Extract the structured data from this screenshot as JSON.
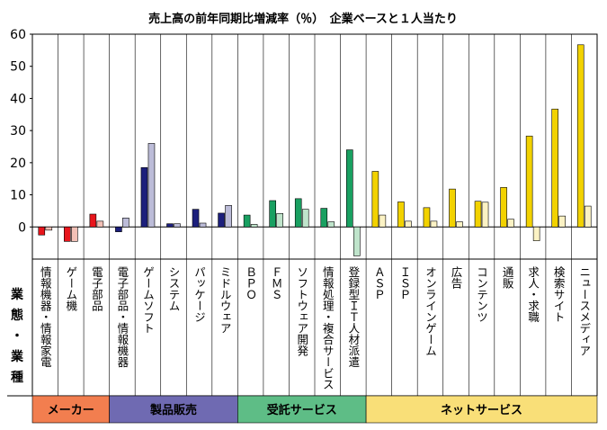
{
  "chart_data": {
    "type": "bar",
    "title": "売上高の前年同期比増減率（％）　企業ベースと１人当たり",
    "ylim": [
      -10,
      60
    ],
    "yticks": [
      0,
      10,
      20,
      30,
      40,
      50,
      60
    ],
    "row_label": [
      "業",
      "態",
      "・",
      "業",
      "種"
    ],
    "categories": [
      "情報機器・情報家電",
      "ゲーム機",
      "電子部品",
      "電子部品・情報機器",
      "ゲームソフト",
      "システム",
      "パッケージ",
      "ミドルウェア",
      "ＢＰＯ",
      "ＦＭＳ",
      "ソフトウェア開発",
      "情報処理・複合サービス",
      "登録型ＩＴ人材派遣",
      "ＡＳＰ",
      "ＩＳＰ",
      "オンラインゲーム",
      "広告",
      "コンテンツ",
      "通販",
      "求人・求職",
      "検索サイト",
      "ニュースメディア"
    ],
    "series": [
      {
        "name": "企業ベース",
        "values": [
          -2.5,
          -4.5,
          4,
          -1.5,
          18.5,
          1,
          5.5,
          4.3,
          3.7,
          8.2,
          8.8,
          5.8,
          24,
          17.3,
          7.8,
          6,
          11.8,
          8,
          12.3,
          28.3,
          36.7,
          56.7
        ]
      },
      {
        "name": "１人当たり",
        "values": [
          -1,
          -4.5,
          1.8,
          2.8,
          26,
          1,
          1.2,
          6.7,
          0.8,
          4.2,
          5.5,
          1.6,
          -9,
          3.7,
          1.8,
          1.8,
          1.6,
          7.7,
          2.4,
          -4.3,
          3.4,
          6.5
        ]
      }
    ],
    "groups": [
      {
        "label": "メーカー",
        "start": 0,
        "count": 3,
        "color_dark": "#e8151c",
        "color_light": "#f2c0b6",
        "band_color": "#f27e4f"
      },
      {
        "label": "製品販売",
        "start": 3,
        "count": 5,
        "color_dark": "#1c1f7c",
        "color_light": "#bcbcd8",
        "band_color": "#6f6ab2"
      },
      {
        "label": "受託サービス",
        "start": 8,
        "count": 5,
        "color_dark": "#19a061",
        "color_light": "#bfe4cb",
        "band_color": "#5ebd86"
      },
      {
        "label": "ネットサービス",
        "start": 13,
        "count": 9,
        "color_dark": "#f2d200",
        "color_light": "#fbf2c4",
        "band_color": "#f9df78"
      }
    ]
  }
}
